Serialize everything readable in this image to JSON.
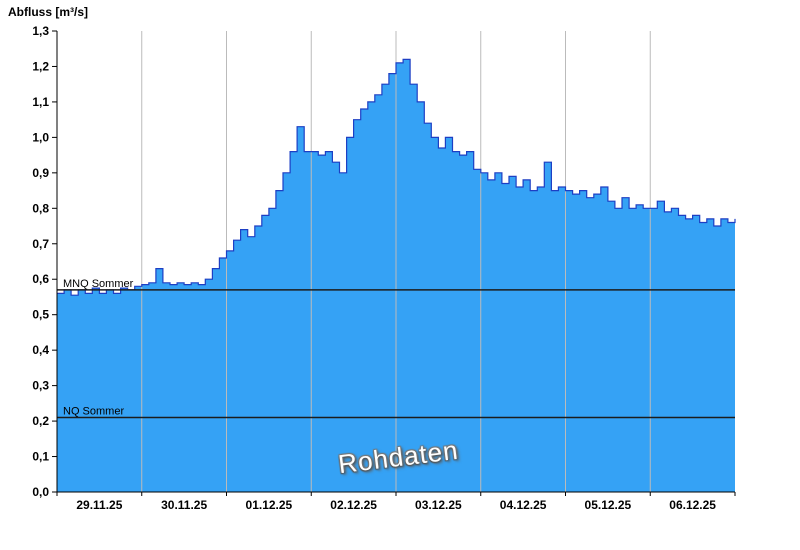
{
  "page": {
    "background": "#ffffff"
  },
  "chart_data": {
    "type": "area",
    "title": "Abfluss [m³/s]",
    "watermark": "Rohdaten",
    "ylim": [
      0,
      1.3
    ],
    "y_tick_step": 0.1,
    "y_tick_labels": [
      "0,0",
      "0,1",
      "0,2",
      "0,3",
      "0,4",
      "0,5",
      "0,6",
      "0,7",
      "0,8",
      "0,9",
      "1,0",
      "1,1",
      "1,2",
      "1,3"
    ],
    "x_labels": [
      "29.11.25",
      "30.11.25",
      "01.12.25",
      "02.12.25",
      "03.12.25",
      "04.12.25",
      "05.12.25",
      "06.12.25"
    ],
    "days": 8,
    "points_per_day": 12,
    "values": [
      0.56,
      0.57,
      0.555,
      0.57,
      0.56,
      0.575,
      0.56,
      0.57,
      0.56,
      0.575,
      0.57,
      0.58,
      0.585,
      0.59,
      0.63,
      0.59,
      0.585,
      0.59,
      0.585,
      0.59,
      0.585,
      0.6,
      0.63,
      0.66,
      0.68,
      0.71,
      0.74,
      0.72,
      0.75,
      0.78,
      0.8,
      0.85,
      0.9,
      0.96,
      1.03,
      0.96,
      0.96,
      0.95,
      0.96,
      0.93,
      0.9,
      1.0,
      1.05,
      1.08,
      1.1,
      1.12,
      1.15,
      1.18,
      1.21,
      1.22,
      1.15,
      1.1,
      1.04,
      1.0,
      0.97,
      1.0,
      0.96,
      0.95,
      0.96,
      0.91,
      0.9,
      0.88,
      0.9,
      0.87,
      0.89,
      0.86,
      0.88,
      0.85,
      0.86,
      0.93,
      0.85,
      0.86,
      0.85,
      0.84,
      0.85,
      0.83,
      0.84,
      0.86,
      0.82,
      0.8,
      0.83,
      0.8,
      0.81,
      0.8,
      0.8,
      0.82,
      0.79,
      0.8,
      0.78,
      0.77,
      0.78,
      0.76,
      0.77,
      0.75,
      0.77,
      0.76,
      0.77
    ],
    "reference_lines": [
      {
        "label": "MNQ Sommer",
        "value": 0.57
      },
      {
        "label": "NQ Sommer",
        "value": 0.21
      }
    ],
    "grid": "vertical-only",
    "legend_position": "none",
    "colors": {
      "fill": "#35A2F5",
      "stroke": "#1D3FC4",
      "grid": "#BBBBBB",
      "axis": "#000000",
      "reference": "#1C1C1C",
      "text": "#000000"
    }
  }
}
